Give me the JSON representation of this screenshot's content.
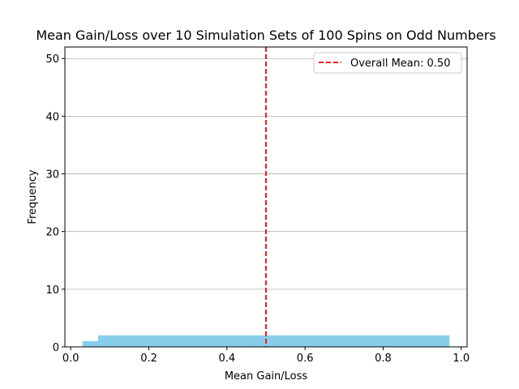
{
  "chart_data": {
    "type": "bar",
    "title": "Mean Gain/Loss over 10 Simulation Sets of 100 Spins on Odd Numbers",
    "xlabel": "Mean Gain/Loss",
    "ylabel": "Frequency",
    "xlim": [
      -0.015,
      1.015
    ],
    "ylim": [
      0,
      52
    ],
    "xticks": [
      0.0,
      0.2,
      0.4,
      0.6,
      0.8,
      1.0
    ],
    "xtick_labels": [
      "0.0",
      "0.2",
      "0.4",
      "0.6",
      "0.8",
      "1.0"
    ],
    "yticks": [
      0,
      10,
      20,
      30,
      40,
      50
    ],
    "ytick_labels": [
      "0",
      "10",
      "20",
      "30",
      "40",
      "50"
    ],
    "grid": "y-axis",
    "bar_color": "#87ceeb",
    "bins": [
      {
        "start": 0.03,
        "end": 0.07,
        "count": 1
      },
      {
        "start": 0.07,
        "end": 0.97,
        "count": 2
      }
    ],
    "reference_line": {
      "x": 0.5,
      "label": "Overall Mean: 0.50",
      "color": "#ff0000",
      "style": "dashed"
    },
    "legend_position": "top-right"
  }
}
